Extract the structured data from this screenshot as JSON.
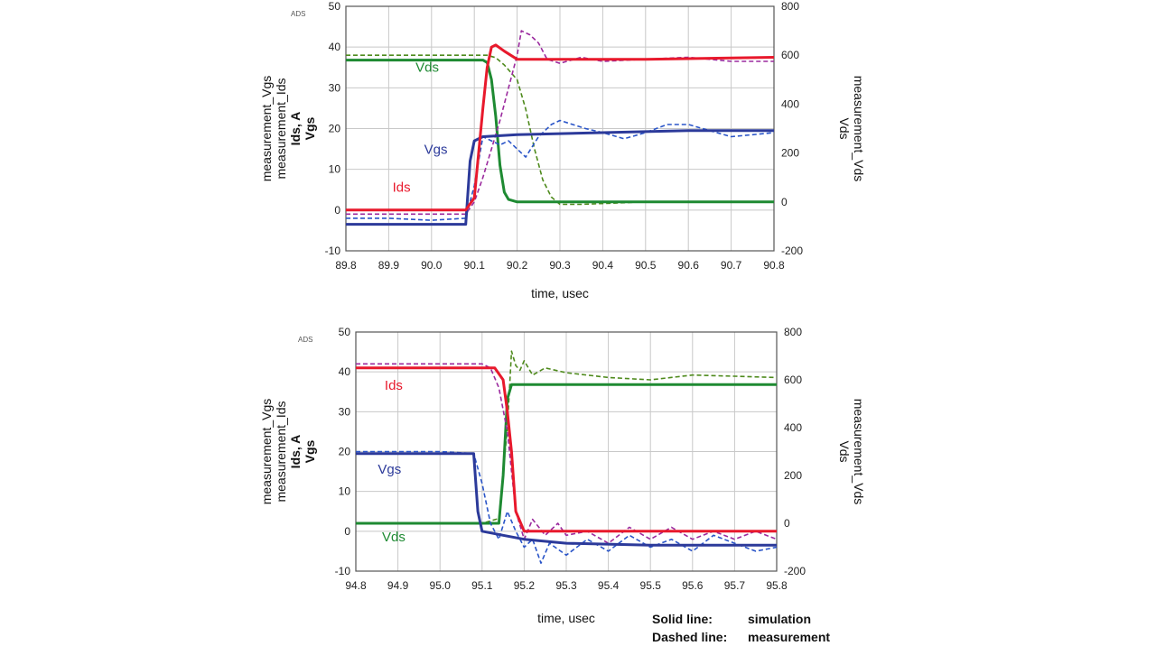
{
  "colors": {
    "ids": "#e8192c",
    "meas_ids": "#9b2a9e",
    "vgs": "#2c3a9a",
    "meas_vgs": "#2a55c8",
    "vds": "#1e8a32",
    "meas_vds": "#4e8a1c",
    "grid": "#c8c8c8"
  },
  "legend": {
    "solid": "Solid line:",
    "solid_value": "simulation",
    "dashed": "Dashed line:",
    "dashed_value": "measurement"
  },
  "chart_data": [
    {
      "type": "line",
      "tag": "ADS",
      "xlabel": "time, usec",
      "xlim": [
        89.8,
        90.8
      ],
      "xticks": [
        "89.8",
        "89.9",
        "90.0",
        "90.1",
        "90.2",
        "90.3",
        "90.4",
        "90.5",
        "90.6",
        "90.7",
        "90.8"
      ],
      "ylim_left": [
        -10,
        50
      ],
      "yticks_left": [
        "-10",
        "0",
        "10",
        "20",
        "30",
        "40",
        "50"
      ],
      "ylim_right": [
        -200,
        800
      ],
      "yticks_right": [
        "-200",
        "0",
        "200",
        "400",
        "600",
        "800"
      ],
      "ylabel_left": [
        "measurement_Vgs",
        "measurement_Ids",
        "Ids, A",
        "Vgs"
      ],
      "ylabel_right": [
        "measurement_Vds",
        "Vds"
      ],
      "annotations": [
        {
          "text": "Vds",
          "series": "vds",
          "x": 89.99,
          "y": 34
        },
        {
          "text": "Vgs",
          "series": "vgs",
          "x": 90.01,
          "y": 13.8
        },
        {
          "text": "Ids",
          "series": "ids",
          "x": 89.93,
          "y": 4.5
        }
      ],
      "series": [
        {
          "name": "Ids",
          "key": "ids",
          "axis": "left",
          "dashed": false,
          "x": [
            89.8,
            90.08,
            90.1,
            90.12,
            90.13,
            90.14,
            90.15,
            90.17,
            90.2,
            90.3,
            90.5,
            90.8
          ],
          "y": [
            0,
            0,
            3,
            25,
            35,
            40,
            40.5,
            39,
            37,
            37,
            37,
            37.5
          ]
        },
        {
          "name": "measurement_Ids",
          "key": "meas_ids",
          "axis": "left",
          "dashed": true,
          "x": [
            89.8,
            90.08,
            90.1,
            90.12,
            90.14,
            90.16,
            90.18,
            90.2,
            90.21,
            90.23,
            90.25,
            90.27,
            90.3,
            90.35,
            90.4,
            90.5,
            90.6,
            90.7,
            90.8
          ],
          "y": [
            -1,
            -1,
            2,
            8,
            15,
            22,
            30,
            38,
            44,
            43,
            41,
            37,
            36,
            37.5,
            36.5,
            37,
            37.5,
            36.5,
            36.5
          ]
        },
        {
          "name": "Vgs",
          "key": "vgs",
          "axis": "left",
          "dashed": false,
          "x": [
            89.8,
            90.08,
            90.09,
            90.1,
            90.12,
            90.2,
            90.4,
            90.6,
            90.8
          ],
          "y": [
            -3.5,
            -3.5,
            12,
            17,
            18,
            18.5,
            19,
            19.5,
            19.5
          ]
        },
        {
          "name": "measurement_Vgs",
          "key": "meas_vgs",
          "axis": "left",
          "dashed": true,
          "x": [
            89.8,
            89.9,
            90.0,
            90.08,
            90.1,
            90.12,
            90.14,
            90.16,
            90.18,
            90.2,
            90.22,
            90.25,
            90.28,
            90.3,
            90.33,
            90.36,
            90.4,
            90.45,
            90.5,
            90.55,
            90.6,
            90.65,
            90.7,
            90.75,
            90.8
          ],
          "y": [
            -2,
            -2,
            -2.5,
            -2,
            6,
            18,
            17,
            16,
            17,
            15,
            13,
            18,
            21,
            22,
            21,
            20,
            19,
            17.5,
            19,
            21,
            21,
            19.5,
            18,
            18.5,
            19
          ]
        },
        {
          "name": "Vds",
          "key": "vds",
          "axis": "right",
          "dashed": false,
          "x": [
            89.8,
            90.12,
            90.13,
            90.14,
            90.15,
            90.16,
            90.17,
            90.18,
            90.2,
            90.8
          ],
          "y": [
            580,
            580,
            570,
            500,
            350,
            150,
            40,
            10,
            0,
            0
          ]
        },
        {
          "name": "measurement_Vds",
          "key": "meas_vds",
          "axis": "right",
          "dashed": true,
          "x": [
            89.8,
            90.1,
            90.13,
            90.15,
            90.17,
            90.2,
            90.22,
            90.24,
            90.26,
            90.28,
            90.3,
            90.35,
            90.5,
            90.8
          ],
          "y": [
            600,
            600,
            600,
            590,
            560,
            500,
            380,
            220,
            90,
            20,
            -10,
            -10,
            0,
            0
          ]
        }
      ]
    },
    {
      "type": "line",
      "tag": "ADS",
      "xlabel": "time, usec",
      "xlim": [
        94.8,
        95.8
      ],
      "xticks": [
        "94.8",
        "94.9",
        "95.0",
        "95.1",
        "95.2",
        "95.3",
        "95.4",
        "95.5",
        "95.6",
        "95.7",
        "95.8"
      ],
      "ylim_left": [
        -10,
        50
      ],
      "yticks_left": [
        "-10",
        "0",
        "10",
        "20",
        "30",
        "40",
        "50"
      ],
      "ylim_right": [
        -200,
        800
      ],
      "yticks_right": [
        "-200",
        "0",
        "200",
        "400",
        "600",
        "800"
      ],
      "ylabel_left": [
        "measurement_Vgs",
        "measurement_Ids",
        "Ids, A",
        "Vgs"
      ],
      "ylabel_right": [
        "measurement_Vds",
        "Vds"
      ],
      "annotations": [
        {
          "text": "Ids",
          "series": "ids",
          "x": 94.89,
          "y": 35.5
        },
        {
          "text": "Vgs",
          "series": "vgs",
          "x": 94.88,
          "y": 14.5
        },
        {
          "text": "Vds",
          "series": "vds",
          "x": 94.89,
          "y": -2.5
        }
      ],
      "series": [
        {
          "name": "Ids",
          "key": "ids",
          "axis": "left",
          "dashed": false,
          "x": [
            94.8,
            95.13,
            95.15,
            95.16,
            95.17,
            95.18,
            95.2,
            95.25,
            95.8
          ],
          "y": [
            41,
            41,
            38,
            30,
            20,
            5,
            0,
            0,
            0
          ]
        },
        {
          "name": "measurement_Ids",
          "key": "meas_ids",
          "axis": "left",
          "dashed": true,
          "x": [
            94.8,
            95.0,
            95.1,
            95.12,
            95.14,
            95.16,
            95.17,
            95.18,
            95.2,
            95.22,
            95.25,
            95.28,
            95.3,
            95.35,
            95.4,
            95.45,
            95.5,
            95.55,
            95.6,
            95.65,
            95.7,
            95.75,
            95.8
          ],
          "y": [
            42,
            42,
            42,
            41,
            36,
            25,
            15,
            5,
            -2,
            3,
            -1,
            2,
            -1,
            0,
            -3,
            1,
            -2,
            1,
            -2,
            0,
            -2,
            0,
            -2
          ]
        },
        {
          "name": "Vgs",
          "key": "vgs",
          "axis": "left",
          "dashed": false,
          "x": [
            94.8,
            95.08,
            95.09,
            95.1,
            95.15,
            95.2,
            95.3,
            95.5,
            95.8
          ],
          "y": [
            19.5,
            19.5,
            5,
            0,
            -1,
            -2,
            -3,
            -3.5,
            -3.5
          ]
        },
        {
          "name": "measurement_Vgs",
          "key": "meas_vgs",
          "axis": "left",
          "dashed": true,
          "x": [
            94.8,
            95.0,
            95.08,
            95.1,
            95.12,
            95.14,
            95.16,
            95.18,
            95.2,
            95.22,
            95.24,
            95.26,
            95.3,
            95.35,
            95.4,
            95.45,
            95.5,
            95.55,
            95.6,
            95.65,
            95.7,
            95.75,
            95.8
          ],
          "y": [
            20,
            20,
            19.5,
            12,
            2,
            -2,
            5,
            0,
            -4,
            -2,
            -8,
            -3,
            -6,
            -2,
            -5,
            -1,
            -4,
            -2,
            -5,
            -1,
            -3,
            -5,
            -4
          ]
        },
        {
          "name": "Vds",
          "key": "vds",
          "axis": "right",
          "dashed": false,
          "x": [
            94.8,
            95.14,
            95.15,
            95.16,
            95.17,
            95.8
          ],
          "y": [
            0,
            0,
            200,
            520,
            580,
            580
          ]
        },
        {
          "name": "measurement_Vds",
          "key": "meas_vds",
          "axis": "right",
          "dashed": true,
          "x": [
            94.8,
            95.1,
            95.14,
            95.16,
            95.17,
            95.18,
            95.19,
            95.2,
            95.22,
            95.25,
            95.3,
            95.4,
            95.5,
            95.6,
            95.7,
            95.8
          ],
          "y": [
            0,
            0,
            20,
            400,
            720,
            660,
            640,
            680,
            620,
            650,
            630,
            610,
            600,
            620,
            615,
            610
          ]
        }
      ]
    }
  ]
}
